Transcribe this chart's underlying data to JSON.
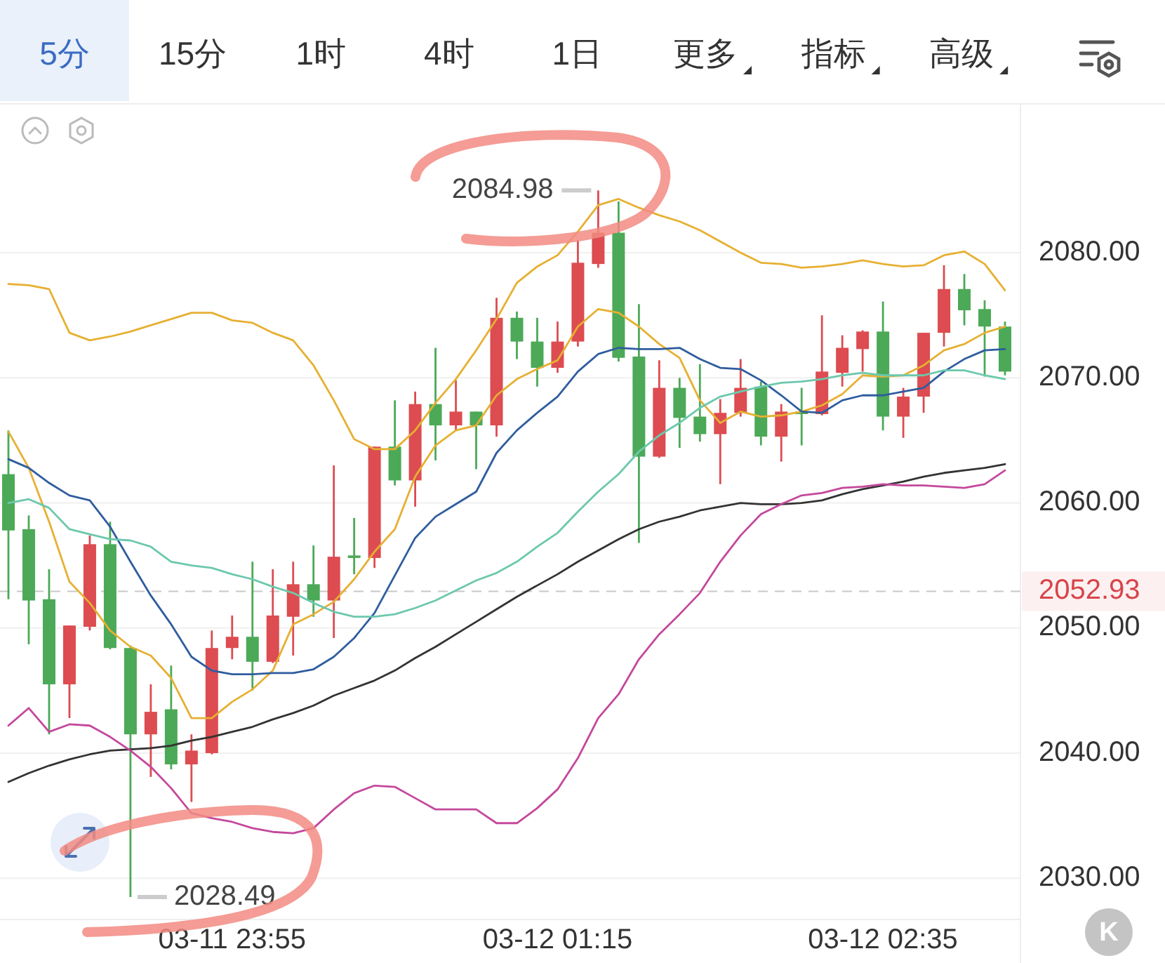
{
  "chart_data": {
    "type": "candlestick",
    "categories": [
      null,
      null,
      null,
      null,
      null,
      null,
      null,
      null,
      null,
      null,
      null,
      "03-11 23:55",
      null,
      null,
      null,
      null,
      null,
      null,
      null,
      null,
      null,
      null,
      null,
      null,
      null,
      null,
      null,
      "03-12 01:15",
      null,
      null,
      null,
      null,
      null,
      null,
      null,
      null,
      null,
      null,
      null,
      null,
      null,
      null,
      null,
      "03-12 02:35",
      null,
      null,
      null,
      null,
      null,
      null
    ],
    "ohlc": [
      [
        2062.3,
        2065.8,
        2052.3,
        2057.8
      ],
      [
        2057.9,
        2059.0,
        2048.7,
        2052.2
      ],
      [
        2052.3,
        2054.7,
        2041.5,
        2045.5
      ],
      [
        2045.5,
        2050.2,
        2042.8,
        2050.2
      ],
      [
        2050.1,
        2057.4,
        2049.8,
        2056.7
      ],
      [
        2056.7,
        2058.5,
        2048.3,
        2048.4
      ],
      [
        2048.4,
        2048.6,
        2028.49,
        2041.5
      ],
      [
        2041.5,
        2045.5,
        2038.1,
        2043.3
      ],
      [
        2043.5,
        2047.0,
        2038.7,
        2039.1
      ],
      [
        2039.1,
        2041.5,
        2036.1,
        2040.2
      ],
      [
        2040.0,
        2049.8,
        2039.9,
        2048.4
      ],
      [
        2048.4,
        2051.0,
        2047.5,
        2049.3
      ],
      [
        2049.3,
        2055.3,
        2045.0,
        2047.3
      ],
      [
        2047.3,
        2054.7,
        2047.2,
        2051.0
      ],
      [
        2050.9,
        2055.3,
        2047.8,
        2053.5
      ],
      [
        2053.5,
        2056.6,
        2050.9,
        2052.2
      ],
      [
        2052.2,
        2063.0,
        2049.2,
        2055.7
      ],
      [
        2055.8,
        2058.8,
        2054.3,
        2055.6
      ],
      [
        2055.6,
        2064.5,
        2054.8,
        2064.5
      ],
      [
        2064.5,
        2068.2,
        2061.4,
        2061.8
      ],
      [
        2061.8,
        2068.9,
        2059.7,
        2067.9
      ],
      [
        2067.9,
        2072.4,
        2063.4,
        2066.2
      ],
      [
        2066.2,
        2069.8,
        2065.8,
        2067.3
      ],
      [
        2067.3,
        2067.3,
        2062.7,
        2066.2
      ],
      [
        2066.2,
        2076.4,
        2065.3,
        2074.8
      ],
      [
        2074.8,
        2075.3,
        2071.5,
        2072.9
      ],
      [
        2072.9,
        2074.8,
        2069.3,
        2070.8
      ],
      [
        2070.8,
        2074.5,
        2070.4,
        2072.9
      ],
      [
        2072.9,
        2081.0,
        2072.5,
        2079.2
      ],
      [
        2079.1,
        2084.98,
        2078.8,
        2081.6
      ],
      [
        2081.6,
        2084.1,
        2071.3,
        2071.6
      ],
      [
        2071.7,
        2075.9,
        2056.8,
        2063.7
      ],
      [
        2063.7,
        2071.4,
        2063.6,
        2069.2
      ],
      [
        2069.2,
        2070.0,
        2064.4,
        2066.8
      ],
      [
        2066.9,
        2071.1,
        2064.9,
        2065.5
      ],
      [
        2065.5,
        2068.3,
        2061.5,
        2067.2
      ],
      [
        2067.2,
        2071.5,
        2066.9,
        2069.2
      ],
      [
        2069.3,
        2069.7,
        2064.6,
        2065.3
      ],
      [
        2065.3,
        2067.9,
        2063.3,
        2067.3
      ],
      [
        2067.3,
        2069.2,
        2064.6,
        2067.1
      ],
      [
        2067.1,
        2075.0,
        2067.0,
        2070.5
      ],
      [
        2070.4,
        2073.4,
        2069.3,
        2072.4
      ],
      [
        2072.3,
        2073.8,
        2070.5,
        2073.7
      ],
      [
        2073.7,
        2076.1,
        2065.8,
        2066.9
      ],
      [
        2066.9,
        2069.2,
        2065.2,
        2068.5
      ],
      [
        2068.5,
        2073.6,
        2067.2,
        2073.6
      ],
      [
        2073.6,
        2079.0,
        2072.5,
        2077.1
      ],
      [
        2077.1,
        2078.3,
        2074.2,
        2075.4
      ],
      [
        2075.5,
        2076.2,
        2070.1,
        2074.1
      ],
      [
        2074.1,
        2074.5,
        2070.2,
        2070.5
      ]
    ],
    "colors": [
      "#4ca957",
      "#4ca957",
      "#4ca957",
      "#dc4c50",
      "#dc4c50",
      "#4ca957",
      "#4ca957",
      "#dc4c50",
      "#4ca957",
      "#dc4c50",
      "#dc4c50",
      "#dc4c50",
      "#4ca957",
      "#dc4c50",
      "#dc4c50",
      "#4ca957",
      "#dc4c50",
      "#4ca957",
      "#dc4c50",
      "#4ca957",
      "#dc4c50",
      "#4ca957",
      "#dc4c50",
      "#4ca957",
      "#dc4c50",
      "#4ca957",
      "#4ca957",
      "#dc4c50",
      "#dc4c50",
      "#dc4c50",
      "#4ca957",
      "#4ca957",
      "#dc4c50",
      "#4ca957",
      "#4ca957",
      "#dc4c50",
      "#dc4c50",
      "#4ca957",
      "#dc4c50",
      "#4ca957",
      "#dc4c50",
      "#dc4c50",
      "#dc4c50",
      "#4ca957",
      "#dc4c50",
      "#dc4c50",
      "#dc4c50",
      "#4ca957",
      "#4ca957",
      "#4ca957"
    ],
    "series": [
      {
        "type": "line",
        "color": "#e6b032",
        "values": [
          2077.5,
          2077.4,
          2077.1,
          2073.6,
          2073.0,
          2073.3,
          2073.7,
          2074.2,
          2074.7,
          2075.2,
          2075.2,
          2074.6,
          2074.4,
          2073.6,
          2073.0,
          2071.0,
          2068.2,
          2065.1,
          2064.3,
          2064.3,
          2065.8,
          2068.0,
          2069.9,
          2072.2,
          2074.7,
          2077.6,
          2078.9,
          2079.8,
          2081.7,
          2083.8,
          2084.3,
          2083.6,
          2083.0,
          2082.5,
          2081.8,
          2080.9,
          2080.0,
          2079.2,
          2079.1,
          2078.8,
          2078.9,
          2079.1,
          2079.4,
          2079.1,
          2078.9,
          2079.0,
          2079.8,
          2080.1,
          2079.1,
          2077.0
        ]
      },
      {
        "type": "line",
        "color": "#e6b032",
        "values": [
          2065.7,
          2062.8,
          2058.5,
          2053.7,
          2052.0,
          2049.8,
          2048.5,
          2047.8,
          2046.0,
          2042.8,
          2042.8,
          2044.1,
          2045.1,
          2046.6,
          2050.3,
          2051.1,
          2052.1,
          2053.9,
          2056.1,
          2057.9,
          2062.1,
          2064.6,
          2065.8,
          2066.2,
          2068.6,
          2069.9,
          2070.7,
          2071.4,
          2074.1,
          2075.5,
          2075.2,
          2074.1,
          2072.7,
          2071.6,
          2068.2,
          2066.4,
          2067.3,
          2066.9,
          2067.0,
          2067.3,
          2067.8,
          2068.7,
          2070.2,
          2070.1,
          2070.2,
          2071.0,
          2072.2,
          2072.7,
          2073.6,
          2074.1
        ]
      },
      {
        "type": "line",
        "color": "#2f5d9e",
        "values": [
          2063.5,
          2062.8,
          2061.6,
          2060.6,
          2060.2,
          2058.1,
          2055.3,
          2052.6,
          2050.3,
          2047.7,
          2046.6,
          2046.3,
          2046.3,
          2046.4,
          2046.4,
          2046.7,
          2047.7,
          2049.2,
          2051.2,
          2054.2,
          2057.2,
          2058.9,
          2059.9,
          2060.9,
          2064.0,
          2065.8,
          2067.2,
          2068.5,
          2070.5,
          2071.9,
          2072.4,
          2072.3,
          2072.3,
          2072.4,
          2071.5,
          2070.8,
          2070.7,
          2069.8,
          2068.6,
          2067.3,
          2067.2,
          2068.2,
          2068.6,
          2068.6,
          2068.9,
          2069.2,
          2070.5,
          2071.5,
          2072.2,
          2072.3
        ]
      },
      {
        "type": "line",
        "color": "#6cc8ad",
        "values": [
          2060.0,
          2060.3,
          2059.6,
          2057.9,
          2057.5,
          2057.1,
          2057.0,
          2056.5,
          2055.3,
          2055.0,
          2054.8,
          2054.3,
          2053.9,
          2053.3,
          2052.8,
          2052.0,
          2051.3,
          2050.9,
          2050.9,
          2051.1,
          2051.6,
          2052.2,
          2053.0,
          2053.8,
          2054.4,
          2055.3,
          2056.5,
          2057.6,
          2059.3,
          2060.9,
          2062.3,
          2064.1,
          2065.4,
          2066.4,
          2067.6,
          2068.5,
          2068.9,
          2069.3,
          2069.6,
          2069.7,
          2069.9,
          2070.2,
          2070.4,
          2070.2,
          2070.2,
          2070.2,
          2070.6,
          2070.6,
          2070.2,
          2069.9
        ]
      },
      {
        "type": "line",
        "color": "#333333",
        "values": [
          2037.7,
          2038.4,
          2039.0,
          2039.5,
          2039.9,
          2040.2,
          2040.3,
          2040.4,
          2040.6,
          2041.0,
          2041.3,
          2041.7,
          2042.1,
          2042.7,
          2043.2,
          2043.8,
          2044.6,
          2045.2,
          2045.8,
          2046.6,
          2047.6,
          2048.5,
          2049.5,
          2050.5,
          2051.5,
          2052.5,
          2053.4,
          2054.3,
          2055.3,
          2056.2,
          2057.1,
          2057.9,
          2058.5,
          2058.9,
          2059.4,
          2059.7,
          2060.0,
          2059.9,
          2059.9,
          2060.0,
          2060.2,
          2060.7,
          2061.1,
          2061.4,
          2061.7,
          2062.1,
          2062.4,
          2062.6,
          2062.8,
          2063.1
        ]
      },
      {
        "type": "line",
        "color": "#c4489c",
        "values": [
          2042.2,
          2043.6,
          2041.7,
          2042.3,
          2042.2,
          2041.3,
          2040.2,
          2038.9,
          2037.2,
          2035.2,
          2034.8,
          2034.5,
          2034.0,
          2033.7,
          2033.6,
          2034.0,
          2035.5,
          2036.8,
          2037.4,
          2037.3,
          2036.4,
          2035.5,
          2035.5,
          2035.5,
          2034.4,
          2034.4,
          2035.6,
          2037.1,
          2039.6,
          2042.8,
          2044.7,
          2047.5,
          2049.5,
          2051.1,
          2052.8,
          2055.3,
          2057.4,
          2059.1,
          2059.9,
          2060.6,
          2060.8,
          2061.2,
          2061.3,
          2061.5,
          2061.4,
          2061.4,
          2061.3,
          2061.2,
          2061.5,
          2062.6
        ]
      }
    ],
    "ylim": [
      2026.7,
      2091.9
    ],
    "yticks": [
      {
        "value": 2030,
        "label": "2030.00"
      },
      {
        "value": 2040,
        "label": "2040.00"
      },
      {
        "value": 2050,
        "label": "2050.00"
      },
      {
        "value": 2060,
        "label": "2060.00"
      },
      {
        "value": 2070,
        "label": "2070.00"
      },
      {
        "value": 2080,
        "label": "2080.00"
      }
    ],
    "grid": "y",
    "ref_lines": [
      {
        "axis": "y",
        "value": 2052.93,
        "label": "2052.93",
        "color": "#c8c8c8",
        "line_style": "dashed"
      }
    ],
    "annotations": [
      "5分",
      "15分",
      "1时",
      "4时",
      "1日",
      "更多",
      "指标",
      "高级",
      "K",
      "2084.98",
      "2028.49"
    ]
  }
}
